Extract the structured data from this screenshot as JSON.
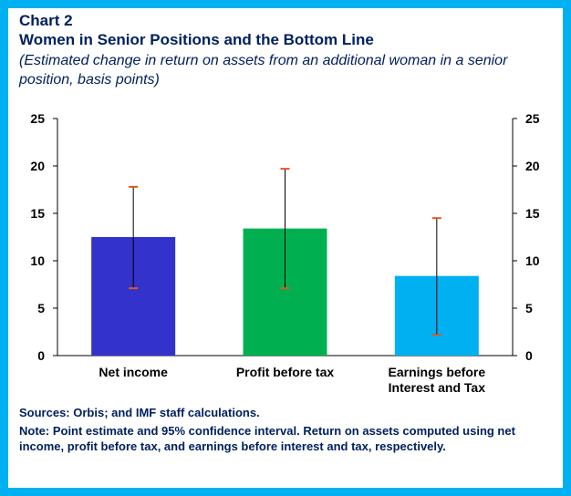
{
  "header": {
    "chart_label": "Chart 2",
    "title": "Women in Senior Positions and the Bottom Line",
    "subtitle": "(Estimated change in return on assets from an additional woman in a senior position, basis points)"
  },
  "footer": {
    "sources": "Sources: Orbis; and IMF staff calculations.",
    "note": "Note: Point estimate and 95% confidence interval. Return on assets computed using net income, profit before tax, and earnings before interest and tax, respectively."
  },
  "colors": {
    "frame": "#00b0f0",
    "text": "#002060",
    "error_bar": "#000000",
    "error_cap": "#e0561c"
  },
  "chart_data": {
    "type": "bar",
    "categories": [
      [
        "Net income"
      ],
      [
        "Profit before tax"
      ],
      [
        "Earnings before",
        "Interest and Tax"
      ]
    ],
    "values": [
      12.5,
      13.4,
      8.4
    ],
    "ci_low": [
      7.1,
      7.1,
      2.2
    ],
    "ci_high": [
      17.8,
      19.7,
      14.5
    ],
    "bar_colors": [
      "#3333cc",
      "#00b050",
      "#00b0f0"
    ],
    "ylim": [
      0,
      25
    ],
    "yticks": [
      0,
      5,
      10,
      15,
      20,
      25
    ],
    "yaxis_left": true,
    "yaxis_right": true,
    "grid": false
  }
}
